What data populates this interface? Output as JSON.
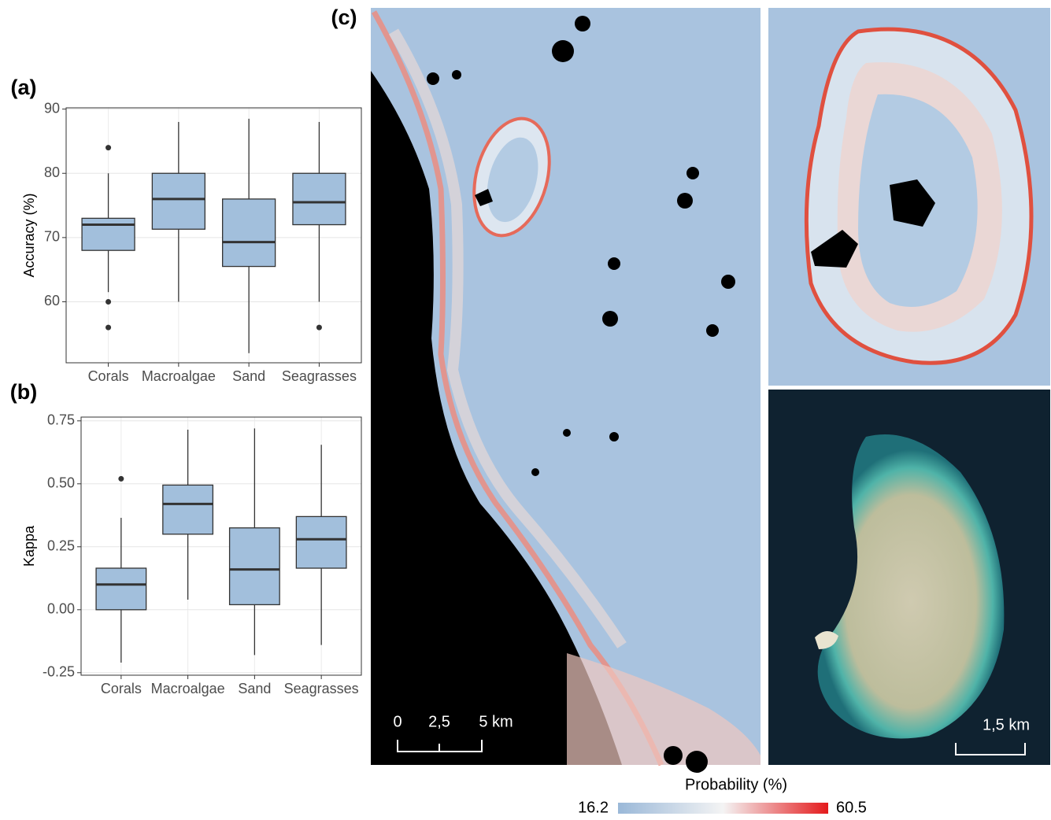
{
  "chart_data": [
    {
      "type": "box",
      "label": "(a)",
      "ylabel": "Accuracy (%)",
      "categories": [
        "Corals",
        "Macroalgae",
        "Sand",
        "Seagrasses"
      ],
      "boxes": [
        {
          "min": 61.5,
          "q1": 68,
          "median": 72,
          "q3": 73,
          "max": 80,
          "outliers": [
            84,
            60,
            56
          ]
        },
        {
          "min": 60,
          "q1": 71.3,
          "median": 76,
          "q3": 80,
          "max": 88,
          "outliers": []
        },
        {
          "min": 52,
          "q1": 65.5,
          "median": 69.3,
          "q3": 76,
          "max": 88.5,
          "outliers": []
        },
        {
          "min": 60,
          "q1": 72,
          "median": 75.5,
          "q3": 80,
          "max": 88,
          "outliers": [
            56
          ]
        }
      ],
      "color": "#a2bfdc",
      "ylim": [
        50.5,
        90.2
      ],
      "yticks": [
        60,
        70,
        80,
        90
      ],
      "grid": true
    },
    {
      "type": "box",
      "label": "(b)",
      "ylabel": "Kappa",
      "categories": [
        "Corals",
        "Macroalgae",
        "Sand",
        "Seagrasses"
      ],
      "boxes": [
        {
          "min": -0.21,
          "q1": 0,
          "median": 0.1,
          "q3": 0.165,
          "max": 0.365,
          "outliers": [
            0.52
          ]
        },
        {
          "min": 0.04,
          "q1": 0.3,
          "median": 0.42,
          "q3": 0.495,
          "max": 0.715,
          "outliers": []
        },
        {
          "min": -0.18,
          "q1": 0.02,
          "median": 0.16,
          "q3": 0.325,
          "max": 0.72,
          "outliers": []
        },
        {
          "min": -0.14,
          "q1": 0.165,
          "median": 0.28,
          "q3": 0.37,
          "max": 0.655,
          "outliers": []
        }
      ],
      "color": "#a2bfdc",
      "ylim": [
        -0.26,
        0.765
      ],
      "yticks": [
        {
          "value": -0.25,
          "label": "-0.25"
        },
        {
          "value": 0,
          "label": "0.00"
        },
        {
          "value": 0.25,
          "label": "0.25"
        },
        {
          "value": 0.5,
          "label": "0.50"
        },
        {
          "value": 0.75,
          "label": "0.75"
        }
      ],
      "grid": true
    }
  ],
  "map": {
    "label": "(c)",
    "scale_main": [
      "0",
      "2,5",
      "5 km"
    ],
    "scale_inset": "1,5 km",
    "colorbar": {
      "title": "Probability (%)",
      "min": 16.2,
      "max": 60.5,
      "colors": [
        "#9ab8d8",
        "#f4f4f4",
        "#e41a1c"
      ]
    }
  }
}
